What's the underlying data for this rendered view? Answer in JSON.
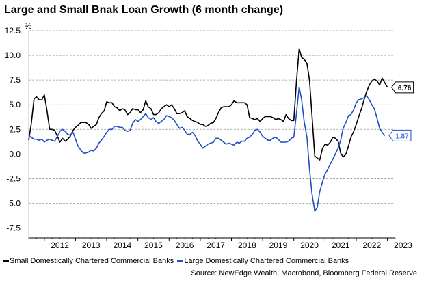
{
  "chart_data": {
    "type": "line",
    "title": "Large and Small Bnak Loan Growth (6 month change)",
    "ylabel": "%",
    "xlabel": "",
    "ylim": [
      -8.5,
      12.5
    ],
    "yticks": [
      12.5,
      10.0,
      7.5,
      5.0,
      2.5,
      0.0,
      -2.5,
      -5.0,
      -7.5
    ],
    "ytick_labels": [
      "12.5",
      "10.0",
      "7.5",
      "5.0",
      "2.5",
      "0.0",
      "-2.5",
      "-5.0",
      "-7.5"
    ],
    "xlim": [
      2011.5,
      2023.25
    ],
    "xtick_labels": [
      {
        "x": 2012.0,
        "label": "2012"
      },
      {
        "x": 2013.0,
        "label": "2013"
      },
      {
        "x": 2014.0,
        "label": "2014"
      },
      {
        "x": 2015.0,
        "label": "2015"
      },
      {
        "x": 2016.0,
        "label": "2016"
      },
      {
        "x": 2017.0,
        "label": "2017"
      },
      {
        "x": 2018.0,
        "label": "2018"
      },
      {
        "x": 2019.0,
        "label": "2019"
      },
      {
        "x": 2020.0,
        "label": "2020"
      },
      {
        "x": 2021.0,
        "label": "2021"
      },
      {
        "x": 2022.0,
        "label": "2022"
      },
      {
        "x": 2023.0,
        "label": "2023"
      }
    ],
    "grid": "horizontal-dashed",
    "legend": "bottom",
    "series": [
      {
        "name": "Small Domestically Chartered Commercial Banks",
        "color": "#000000",
        "end_label": "6.76",
        "points": [
          [
            2011.5,
            1.4
          ],
          [
            2011.58,
            3.0
          ],
          [
            2011.67,
            5.6
          ],
          [
            2011.75,
            5.8
          ],
          [
            2011.83,
            5.5
          ],
          [
            2011.92,
            5.5
          ],
          [
            2012.0,
            6.0
          ],
          [
            2012.08,
            4.5
          ],
          [
            2012.17,
            2.5
          ],
          [
            2012.25,
            2.5
          ],
          [
            2012.33,
            2.4
          ],
          [
            2012.42,
            1.8
          ],
          [
            2012.5,
            1.2
          ],
          [
            2012.58,
            1.6
          ],
          [
            2012.67,
            1.3
          ],
          [
            2012.75,
            1.5
          ],
          [
            2012.83,
            1.8
          ],
          [
            2012.92,
            2.4
          ],
          [
            2013.0,
            2.7
          ],
          [
            2013.08,
            2.9
          ],
          [
            2013.17,
            3.2
          ],
          [
            2013.25,
            3.2
          ],
          [
            2013.33,
            3.2
          ],
          [
            2013.42,
            3.0
          ],
          [
            2013.5,
            2.6
          ],
          [
            2013.58,
            2.8
          ],
          [
            2013.67,
            3.0
          ],
          [
            2013.75,
            3.7
          ],
          [
            2013.83,
            4.1
          ],
          [
            2013.92,
            4.4
          ],
          [
            2014.0,
            5.3
          ],
          [
            2014.08,
            5.2
          ],
          [
            2014.17,
            5.2
          ],
          [
            2014.25,
            4.8
          ],
          [
            2014.33,
            4.7
          ],
          [
            2014.42,
            4.4
          ],
          [
            2014.5,
            4.6
          ],
          [
            2014.58,
            4.5
          ],
          [
            2014.67,
            4.0
          ],
          [
            2014.75,
            4.2
          ],
          [
            2014.83,
            4.6
          ],
          [
            2014.92,
            4.5
          ],
          [
            2015.0,
            4.5
          ],
          [
            2015.08,
            4.2
          ],
          [
            2015.17,
            4.5
          ],
          [
            2015.25,
            5.4
          ],
          [
            2015.33,
            4.8
          ],
          [
            2015.42,
            4.6
          ],
          [
            2015.5,
            4.0
          ],
          [
            2015.58,
            4.0
          ],
          [
            2015.67,
            4.2
          ],
          [
            2015.75,
            4.6
          ],
          [
            2015.83,
            4.8
          ],
          [
            2015.92,
            5.0
          ],
          [
            2016.0,
            4.8
          ],
          [
            2016.08,
            5.0
          ],
          [
            2016.17,
            4.6
          ],
          [
            2016.25,
            4.1
          ],
          [
            2016.33,
            4.1
          ],
          [
            2016.42,
            4.2
          ],
          [
            2016.5,
            4.4
          ],
          [
            2016.58,
            3.8
          ],
          [
            2016.67,
            3.6
          ],
          [
            2016.75,
            3.4
          ],
          [
            2016.83,
            3.3
          ],
          [
            2016.92,
            3.2
          ],
          [
            2017.0,
            3.0
          ],
          [
            2017.08,
            3.0
          ],
          [
            2017.17,
            2.8
          ],
          [
            2017.25,
            2.9
          ],
          [
            2017.33,
            3.1
          ],
          [
            2017.42,
            3.2
          ],
          [
            2017.5,
            3.6
          ],
          [
            2017.58,
            4.2
          ],
          [
            2017.67,
            4.7
          ],
          [
            2017.75,
            4.8
          ],
          [
            2017.83,
            4.8
          ],
          [
            2017.92,
            4.8
          ],
          [
            2018.0,
            5.0
          ],
          [
            2018.08,
            5.4
          ],
          [
            2018.17,
            5.2
          ],
          [
            2018.25,
            5.2
          ],
          [
            2018.33,
            5.2
          ],
          [
            2018.42,
            5.2
          ],
          [
            2018.5,
            5.0
          ],
          [
            2018.58,
            3.7
          ],
          [
            2018.67,
            3.6
          ],
          [
            2018.75,
            3.5
          ],
          [
            2018.83,
            3.6
          ],
          [
            2018.92,
            3.3
          ],
          [
            2019.0,
            3.6
          ],
          [
            2019.08,
            3.8
          ],
          [
            2019.17,
            3.8
          ],
          [
            2019.25,
            3.8
          ],
          [
            2019.33,
            3.7
          ],
          [
            2019.42,
            3.5
          ],
          [
            2019.5,
            3.6
          ],
          [
            2019.58,
            3.5
          ],
          [
            2019.67,
            3.3
          ],
          [
            2019.75,
            4.0
          ],
          [
            2019.83,
            3.6
          ],
          [
            2019.92,
            3.4
          ],
          [
            2020.0,
            3.4
          ],
          [
            2020.08,
            7.2
          ],
          [
            2020.17,
            10.7
          ],
          [
            2020.25,
            9.8
          ],
          [
            2020.33,
            9.6
          ],
          [
            2020.42,
            9.2
          ],
          [
            2020.5,
            7.5
          ],
          [
            2020.58,
            4.0
          ],
          [
            2020.67,
            -0.2
          ],
          [
            2020.75,
            -0.4
          ],
          [
            2020.83,
            -0.6
          ],
          [
            2020.92,
            0.6
          ],
          [
            2021.0,
            1.0
          ],
          [
            2021.08,
            0.9
          ],
          [
            2021.17,
            1.2
          ],
          [
            2021.25,
            1.7
          ],
          [
            2021.33,
            1.6
          ],
          [
            2021.42,
            1.3
          ],
          [
            2021.5,
            0.1
          ],
          [
            2021.58,
            -0.3
          ],
          [
            2021.67,
            0.0
          ],
          [
            2021.75,
            0.8
          ],
          [
            2021.83,
            1.7
          ],
          [
            2021.92,
            2.3
          ],
          [
            2022.0,
            3.0
          ],
          [
            2022.08,
            3.8
          ],
          [
            2022.17,
            4.6
          ],
          [
            2022.25,
            5.5
          ],
          [
            2022.33,
            6.3
          ],
          [
            2022.42,
            7.0
          ],
          [
            2022.5,
            7.4
          ],
          [
            2022.58,
            7.6
          ],
          [
            2022.67,
            7.4
          ],
          [
            2022.75,
            7.0
          ],
          [
            2022.83,
            7.7
          ],
          [
            2022.92,
            7.2
          ],
          [
            2023.0,
            6.76
          ]
        ]
      },
      {
        "name": "Large Domestically Chartered Commercial Banks",
        "color": "#1f4fc4",
        "end_label": "1.87",
        "points": [
          [
            2011.5,
            1.9
          ],
          [
            2011.58,
            1.7
          ],
          [
            2011.67,
            1.5
          ],
          [
            2011.75,
            1.5
          ],
          [
            2011.83,
            1.4
          ],
          [
            2011.92,
            1.5
          ],
          [
            2012.0,
            1.2
          ],
          [
            2012.08,
            1.4
          ],
          [
            2012.17,
            1.5
          ],
          [
            2012.25,
            1.4
          ],
          [
            2012.33,
            1.3
          ],
          [
            2012.42,
            1.8
          ],
          [
            2012.5,
            2.3
          ],
          [
            2012.58,
            2.5
          ],
          [
            2012.67,
            2.3
          ],
          [
            2012.75,
            2.0
          ],
          [
            2012.83,
            1.9
          ],
          [
            2012.92,
            2.2
          ],
          [
            2013.0,
            1.5
          ],
          [
            2013.08,
            0.8
          ],
          [
            2013.17,
            0.4
          ],
          [
            2013.25,
            0.1
          ],
          [
            2013.33,
            0.1
          ],
          [
            2013.42,
            0.2
          ],
          [
            2013.5,
            0.4
          ],
          [
            2013.58,
            0.3
          ],
          [
            2013.67,
            0.6
          ],
          [
            2013.75,
            1.1
          ],
          [
            2013.83,
            1.4
          ],
          [
            2013.92,
            1.8
          ],
          [
            2014.0,
            2.2
          ],
          [
            2014.08,
            2.5
          ],
          [
            2014.17,
            2.5
          ],
          [
            2014.25,
            2.8
          ],
          [
            2014.33,
            2.8
          ],
          [
            2014.42,
            2.7
          ],
          [
            2014.5,
            2.7
          ],
          [
            2014.58,
            2.4
          ],
          [
            2014.67,
            2.3
          ],
          [
            2014.75,
            2.4
          ],
          [
            2014.83,
            3.1
          ],
          [
            2014.92,
            3.5
          ],
          [
            2015.0,
            3.3
          ],
          [
            2015.08,
            3.5
          ],
          [
            2015.17,
            3.8
          ],
          [
            2015.25,
            4.1
          ],
          [
            2015.33,
            3.7
          ],
          [
            2015.42,
            3.5
          ],
          [
            2015.5,
            3.7
          ],
          [
            2015.58,
            3.3
          ],
          [
            2015.67,
            3.1
          ],
          [
            2015.75,
            3.3
          ],
          [
            2015.83,
            3.5
          ],
          [
            2015.92,
            3.9
          ],
          [
            2016.0,
            3.8
          ],
          [
            2016.08,
            3.7
          ],
          [
            2016.17,
            3.4
          ],
          [
            2016.25,
            3.0
          ],
          [
            2016.33,
            2.6
          ],
          [
            2016.42,
            2.7
          ],
          [
            2016.5,
            2.4
          ],
          [
            2016.58,
            2.0
          ],
          [
            2016.67,
            2.0
          ],
          [
            2016.75,
            2.2
          ],
          [
            2016.83,
            1.9
          ],
          [
            2016.92,
            1.3
          ],
          [
            2017.0,
            1.0
          ],
          [
            2017.08,
            0.6
          ],
          [
            2017.17,
            0.8
          ],
          [
            2017.25,
            1.0
          ],
          [
            2017.33,
            1.1
          ],
          [
            2017.42,
            1.2
          ],
          [
            2017.5,
            1.6
          ],
          [
            2017.58,
            1.6
          ],
          [
            2017.67,
            1.4
          ],
          [
            2017.75,
            1.2
          ],
          [
            2017.83,
            1.0
          ],
          [
            2017.92,
            1.1
          ],
          [
            2018.0,
            1.0
          ],
          [
            2018.08,
            0.9
          ],
          [
            2018.17,
            1.2
          ],
          [
            2018.25,
            1.1
          ],
          [
            2018.33,
            1.3
          ],
          [
            2018.42,
            1.3
          ],
          [
            2018.5,
            1.6
          ],
          [
            2018.58,
            1.7
          ],
          [
            2018.67,
            2.0
          ],
          [
            2018.75,
            2.4
          ],
          [
            2018.83,
            2.5
          ],
          [
            2018.92,
            2.2
          ],
          [
            2019.0,
            1.8
          ],
          [
            2019.08,
            1.6
          ],
          [
            2019.17,
            1.4
          ],
          [
            2019.25,
            1.4
          ],
          [
            2019.33,
            1.6
          ],
          [
            2019.42,
            1.7
          ],
          [
            2019.5,
            1.5
          ],
          [
            2019.58,
            1.2
          ],
          [
            2019.67,
            1.2
          ],
          [
            2019.75,
            1.2
          ],
          [
            2019.83,
            1.3
          ],
          [
            2019.92,
            1.6
          ],
          [
            2020.0,
            1.7
          ],
          [
            2020.08,
            4.0
          ],
          [
            2020.17,
            6.8
          ],
          [
            2020.25,
            5.5
          ],
          [
            2020.33,
            3.3
          ],
          [
            2020.42,
            1.7
          ],
          [
            2020.5,
            -1.5
          ],
          [
            2020.58,
            -4.0
          ],
          [
            2020.67,
            -5.8
          ],
          [
            2020.75,
            -5.4
          ],
          [
            2020.83,
            -3.8
          ],
          [
            2020.92,
            -2.8
          ],
          [
            2021.0,
            -2.0
          ],
          [
            2021.08,
            -1.6
          ],
          [
            2021.17,
            -1.0
          ],
          [
            2021.25,
            -0.5
          ],
          [
            2021.33,
            0.0
          ],
          [
            2021.42,
            0.6
          ],
          [
            2021.5,
            1.4
          ],
          [
            2021.58,
            2.6
          ],
          [
            2021.67,
            3.2
          ],
          [
            2021.75,
            3.9
          ],
          [
            2021.83,
            4.0
          ],
          [
            2021.92,
            4.5
          ],
          [
            2022.0,
            5.2
          ],
          [
            2022.08,
            5.5
          ],
          [
            2022.17,
            5.6
          ],
          [
            2022.25,
            5.7
          ],
          [
            2022.33,
            5.9
          ],
          [
            2022.42,
            5.5
          ],
          [
            2022.5,
            5.0
          ],
          [
            2022.58,
            4.6
          ],
          [
            2022.67,
            3.6
          ],
          [
            2022.75,
            2.6
          ],
          [
            2022.83,
            2.2
          ],
          [
            2022.92,
            1.87
          ]
        ]
      }
    ],
    "source": "Source: NewEdge Wealth, Macrobond, Bloomberg Federal Reserve"
  }
}
